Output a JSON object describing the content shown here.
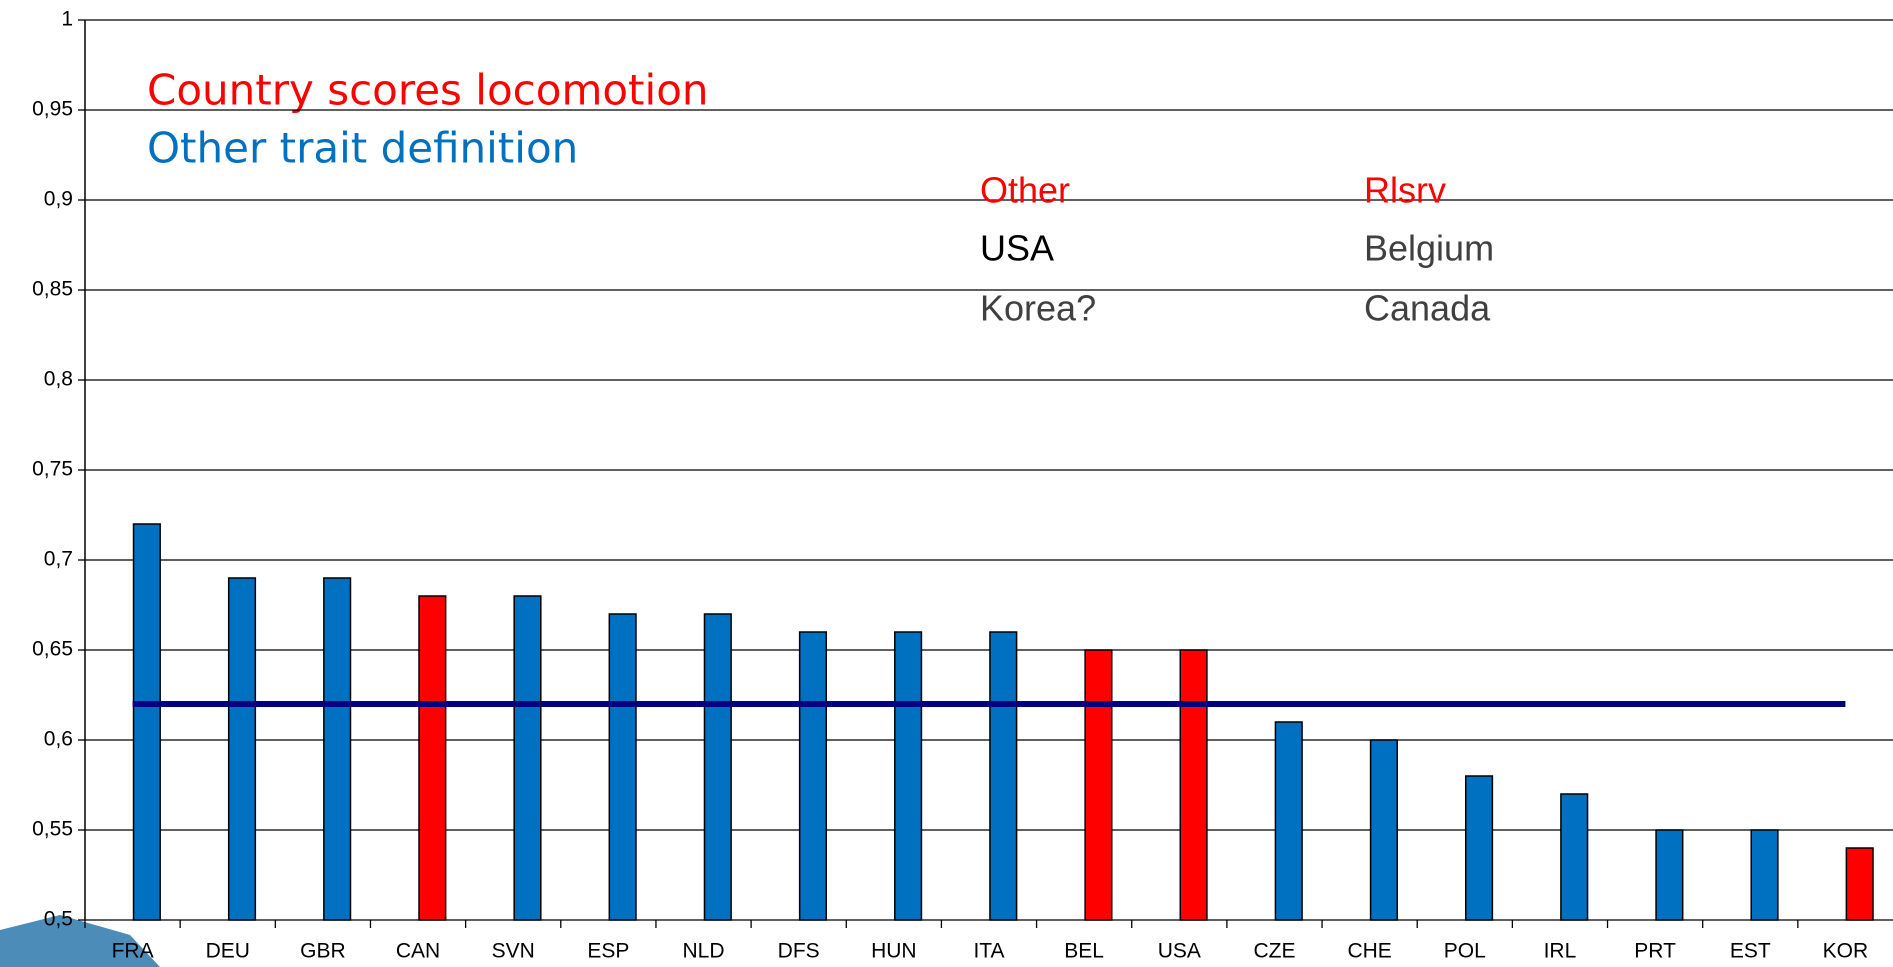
{
  "chart_data": {
    "type": "bar",
    "title": "Country scores locomotion",
    "subtitle": "Other trait definition",
    "notes": [
      {
        "header": "Other",
        "items": [
          "USA",
          "Korea?"
        ]
      },
      {
        "header": "Rlsrv",
        "items": [
          "Belgium",
          "Canada"
        ]
      }
    ],
    "categories": [
      "FRA",
      "DEU",
      "GBR",
      "CAN",
      "SVN",
      "ESP",
      "NLD",
      "DFS",
      "HUN",
      "ITA",
      "BEL",
      "USA",
      "CZE",
      "CHE",
      "POL",
      "IRL",
      "PRT",
      "EST",
      "KOR"
    ],
    "values": [
      0.72,
      0.69,
      0.69,
      0.68,
      0.68,
      0.67,
      0.67,
      0.66,
      0.66,
      0.66,
      0.65,
      0.65,
      0.61,
      0.6,
      0.58,
      0.57,
      0.55,
      0.55,
      0.54
    ],
    "colors": [
      "#0070c0",
      "#0070c0",
      "#0070c0",
      "#ff0000",
      "#0070c0",
      "#0070c0",
      "#0070c0",
      "#0070c0",
      "#0070c0",
      "#0070c0",
      "#ff0000",
      "#ff0000",
      "#0070c0",
      "#0070c0",
      "#0070c0",
      "#0070c0",
      "#0070c0",
      "#0070c0",
      "#ff0000"
    ],
    "reference_line": {
      "value": 0.62,
      "color": "#000080"
    },
    "ylim": [
      0.5,
      1
    ],
    "yticks": [
      {
        "value": 0.5,
        "label": "0,5"
      },
      {
        "value": 0.55,
        "label": "0,55"
      },
      {
        "value": 0.6,
        "label": "0,6"
      },
      {
        "value": 0.65,
        "label": "0,65"
      },
      {
        "value": 0.7,
        "label": "0,7"
      },
      {
        "value": 0.75,
        "label": "0,75"
      },
      {
        "value": 0.8,
        "label": "0,8"
      },
      {
        "value": 0.85,
        "label": "0,85"
      },
      {
        "value": 0.9,
        "label": "0,9"
      },
      {
        "value": 0.95,
        "label": "0,95"
      },
      1
    ],
    "grid": true
  }
}
